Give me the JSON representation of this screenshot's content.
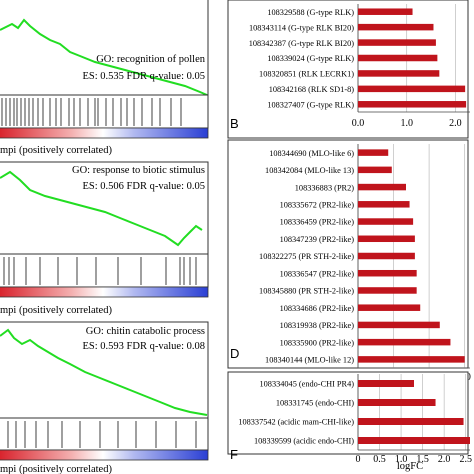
{
  "colors": {
    "enrichment_line": "#22dd22",
    "bar": "#c0141c",
    "frame": "#333333",
    "grid": "#bbbbbb",
    "rank_red": "#d8202a",
    "rank_blue": "#2a3fd4"
  },
  "gsea_panels": [
    {
      "go_label": "GO: recognition of pollen",
      "stats": "ES: 0.535  FDR q-value: 0.05",
      "caption": "mpi (positively correlated)"
    },
    {
      "go_label": "GO: response to biotic stimulus",
      "stats": "ES: 0.506  FDR q-value: 0.05",
      "caption": "mpi (positively correlated)"
    },
    {
      "go_label": "GO: chitin catabolic process",
      "stats": "ES: 0.593  FDR q-value: 0.08",
      "caption": "mpi (positively correlated)"
    }
  ],
  "chart_data": [
    {
      "type": "bar",
      "orientation": "horizontal",
      "panel_letter": "B",
      "categories": [
        "108329588 (G-type RLK)",
        "108343114 (G-type RLK BI20)",
        "108342387 (G-type RLK BI20)",
        "108339024 (G-type RLK)",
        "108320851 (RLK LECRK1)",
        "108342168 (RLK SD1-8)",
        "108327407 (G-type RLK)"
      ],
      "values": [
        1.12,
        1.55,
        1.6,
        1.63,
        1.67,
        2.2,
        2.22
      ],
      "xticks": [
        "0.0",
        "1.0",
        "2.0"
      ],
      "xlim": [
        0,
        2.3
      ],
      "grid": true
    },
    {
      "type": "bar",
      "orientation": "horizontal",
      "panel_letter": "D",
      "categories": [
        "108344690 (MLO-like 6)",
        "108342084 (MLO-like 13)",
        "108336883 (PR2)",
        "108335672 (PR2-like)",
        "108336459 (PR2-like)",
        "108347239 (PR2-like)",
        "108322275 (PR STH-2-like)",
        "108336547 (PR2-like)",
        "108345880 (PR STH-2-like)",
        "108334686 (PR2-like)",
        "108319938 (PR2-like)",
        "108335900 (PR2-like)",
        "108340144 (MLO-like 12)"
      ],
      "values": [
        0.85,
        0.95,
        1.35,
        1.45,
        1.55,
        1.6,
        1.6,
        1.65,
        1.65,
        1.75,
        2.3,
        2.6,
        3.0
      ],
      "xticks": [
        "0",
        "1.0",
        "2.0",
        "3.0"
      ],
      "xlim": [
        0,
        3.15
      ],
      "grid": true
    },
    {
      "type": "bar",
      "orientation": "horizontal",
      "panel_letter": "F",
      "xlabel": "logFC",
      "categories": [
        "108334045 (endo-CHI PR4)",
        "108331745 (endo-CHI)",
        "108337542 (acidic mam-CHI-like)",
        "108339599 (acidic endo-CHI)"
      ],
      "values": [
        1.3,
        1.8,
        2.45,
        2.6
      ],
      "xticks": [
        "0",
        "0.5",
        "1.0",
        "1.5",
        "2.0",
        "2.5"
      ],
      "xlim": [
        0,
        2.6
      ],
      "grid": true
    }
  ]
}
